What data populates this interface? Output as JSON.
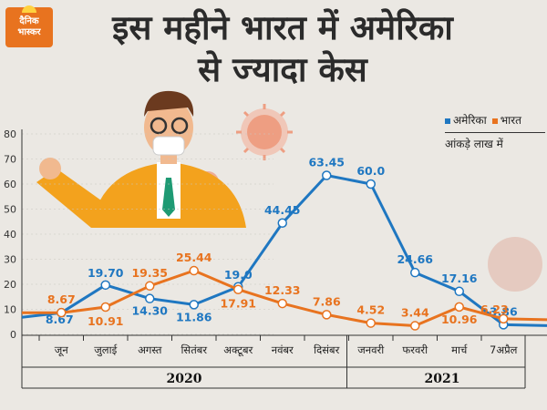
{
  "brand": {
    "logo_line1": "दैनिक",
    "logo_line2": "भास्कर"
  },
  "headline": {
    "line1": "इस महीने भारत में अमेरिका",
    "line2": "से ज्यादा केस"
  },
  "legend": {
    "items": [
      "अमेरिका",
      "भारत"
    ],
    "note": "आंकड़े लाख में"
  },
  "colors": {
    "usa": "#1f77c1",
    "india": "#e8731f",
    "bg": "#ebe8e3",
    "axis": "#333333"
  },
  "chart_data": {
    "type": "line",
    "categories": [
      "जून",
      "जुलाई",
      "अगस्त",
      "सितंबर",
      "अक्टूबर",
      "नवंबर",
      "दिसंबर",
      "जनवरी",
      "फरवरी",
      "मार्च",
      "7अप्रैल"
    ],
    "year_labels": [
      "2020",
      "2021"
    ],
    "ylim": [
      0,
      80
    ],
    "yticks": [
      0,
      10,
      20,
      30,
      40,
      50,
      60,
      70,
      80
    ],
    "series": [
      {
        "name": "अमेरिका",
        "values": [
          8.67,
          19.7,
          14.3,
          11.86,
          19.0,
          44.45,
          63.45,
          60.0,
          24.66,
          17.16,
          3.86
        ],
        "labels": [
          "8.67",
          "19.70",
          "14.30",
          "11.86",
          "19.0",
          "44.45",
          "63.45",
          "60.0",
          "24.66",
          "17.16",
          "3.86"
        ]
      },
      {
        "name": "भारत",
        "values": [
          8.67,
          10.91,
          19.35,
          25.44,
          17.91,
          12.33,
          7.86,
          4.52,
          3.44,
          10.96,
          6.23
        ],
        "labels": [
          "8.67",
          "10.91",
          "19.35",
          "25.44",
          "17.91",
          "12.33",
          "7.86",
          "4.52",
          "3.44",
          "10.96",
          "6.23"
        ]
      }
    ]
  }
}
